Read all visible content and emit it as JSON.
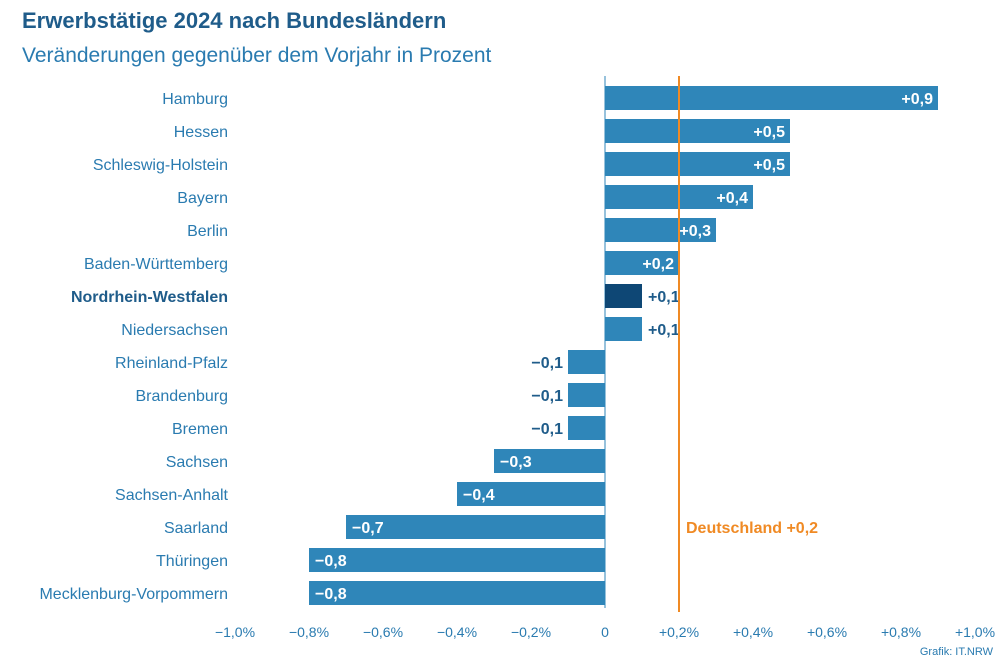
{
  "chart_data": {
    "type": "bar",
    "orientation": "horizontal",
    "title": "Erwerbstätige 2024 nach Bundesländern",
    "subtitle": "Veränderungen gegenüber dem Vorjahr in Prozent",
    "categories": [
      "Hamburg",
      "Hessen",
      "Schleswig-Holstein",
      "Bayern",
      "Berlin",
      "Baden-Württemberg",
      "Nordrhein-Westfalen",
      "Niedersachsen",
      "Rheinland-Pfalz",
      "Brandenburg",
      "Bremen",
      "Sachsen",
      "Sachsen-Anhalt",
      "Saarland",
      "Thüringen",
      "Mecklenburg-Vorpommern"
    ],
    "values": [
      0.9,
      0.5,
      0.5,
      0.4,
      0.3,
      0.2,
      0.1,
      0.1,
      -0.1,
      -0.1,
      -0.1,
      -0.3,
      -0.4,
      -0.7,
      -0.8,
      -0.8
    ],
    "value_labels": [
      "+0,9",
      "+0,5",
      "+0,5",
      "+0,4",
      "+0,3",
      "+0,2",
      "+0,1",
      "+0,1",
      "−0,1",
      "−0,1",
      "−0,1",
      "−0,3",
      "−0,4",
      "−0,7",
      "−0,8",
      "−0,8"
    ],
    "highlight_category": "Nordrhein-Westfalen",
    "xlim": [
      -1.0,
      1.0
    ],
    "xticks": [
      -1.0,
      -0.8,
      -0.6,
      -0.4,
      -0.2,
      0,
      0.2,
      0.4,
      0.6,
      0.8,
      1.0
    ],
    "xtick_labels": [
      "−1,0%",
      "−0,8%",
      "−0,6%",
      "−0,4%",
      "−0,2%",
      "0",
      "+0,2%",
      "+0,4%",
      "+0,6%",
      "+0,8%",
      "+1,0%"
    ],
    "reference_line": {
      "value": 0.2,
      "label": "Deutschland +0,2",
      "color": "#f08a24"
    },
    "colors": {
      "bar": "#2f86b9",
      "highlight": "#0e4775",
      "text": "#2a7bb0",
      "highlight_text": "#1f5c8a"
    }
  },
  "credit": "Grafik: IT.NRW"
}
